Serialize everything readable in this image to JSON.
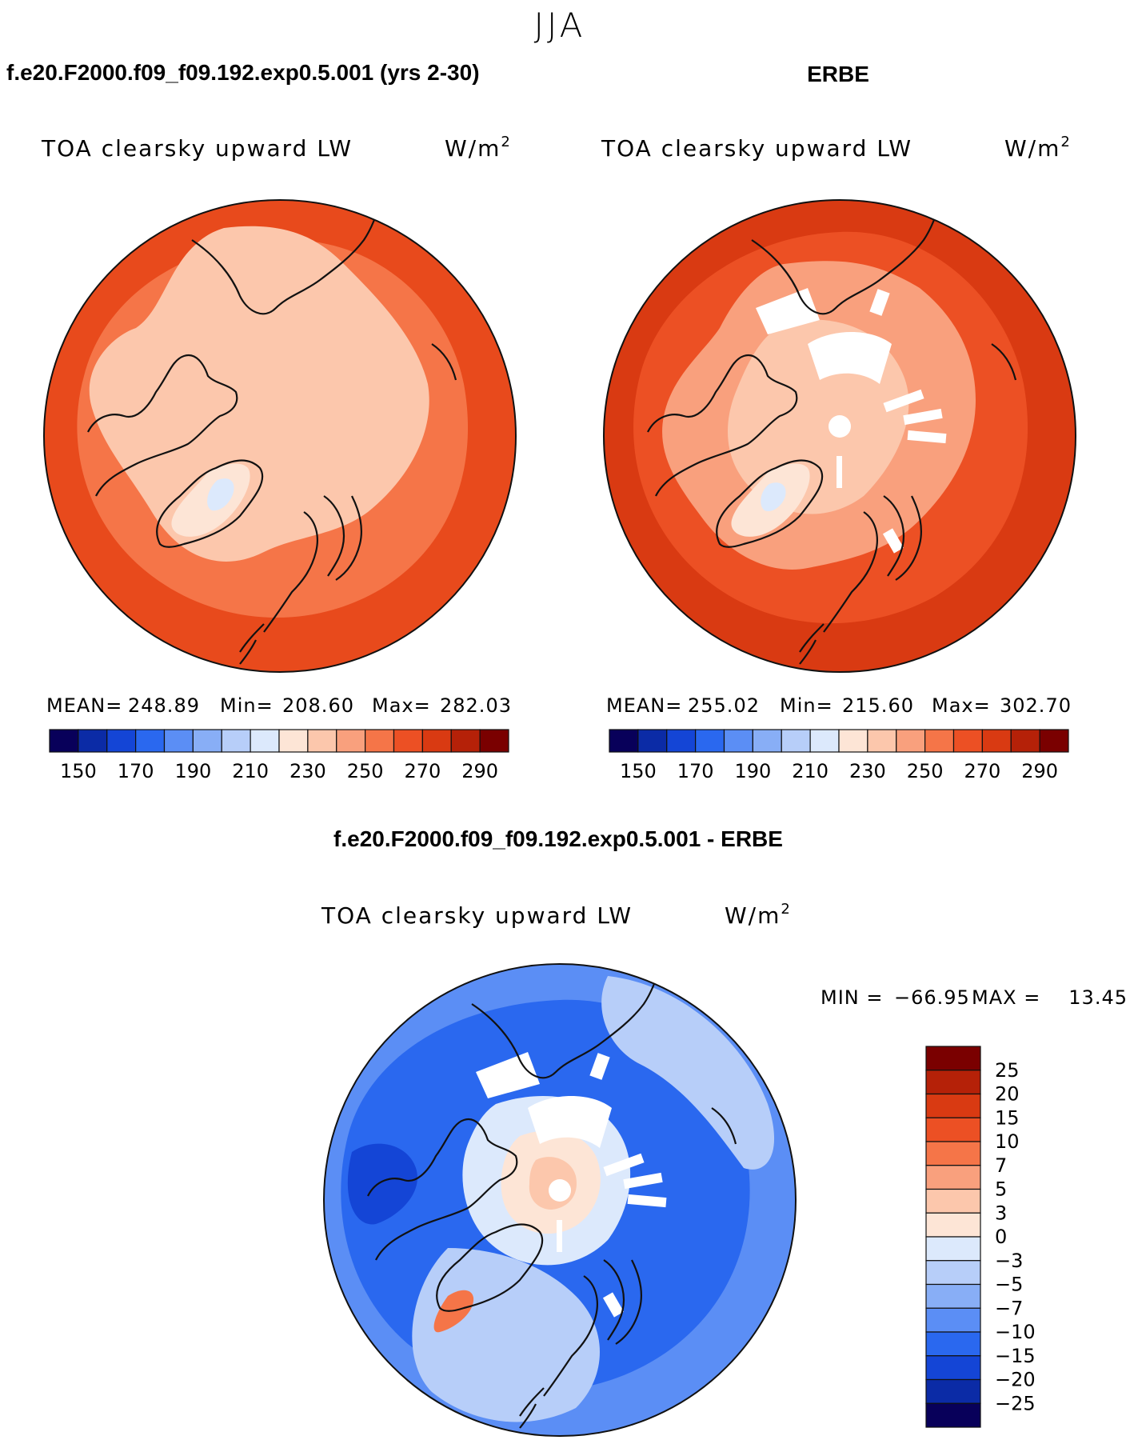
{
  "season": "JJA",
  "colors": {
    "ocean_red": "#e84a1c",
    "land_light": "#fcc7ac",
    "coast": "#111111",
    "blue_base": "#1e5be6",
    "blue_light": "#a9c8f5"
  },
  "chart_data": [
    {
      "type": "heatmap",
      "projection": "north-polar-stereographic",
      "title": "f.e20.F2000.f09_f09.192.exp0.5.001 (yrs 2-30)",
      "variable": "TOA clearsky upward LW",
      "units": "W/m",
      "units_power": "2",
      "stats": {
        "mean_label": "MEAN=",
        "mean": "248.89",
        "min_label": "Min=",
        "min": "208.60",
        "max_label": "Max=",
        "max": "282.03"
      },
      "colorbar": {
        "levels": [
          150,
          160,
          170,
          180,
          190,
          200,
          210,
          220,
          230,
          240,
          250,
          260,
          270,
          280,
          290
        ],
        "tick_labels": [
          "150",
          "170",
          "190",
          "210",
          "230",
          "250",
          "270",
          "290"
        ],
        "colors": [
          "#08005a",
          "#0b2ba6",
          "#1445d6",
          "#2a68ef",
          "#5b8ef5",
          "#88aef6",
          "#b7cef9",
          "#dce9fc",
          "#fde5d6",
          "#fcc7ac",
          "#f9a07d",
          "#f57548",
          "#ec5024",
          "#d93a12",
          "#b52108",
          "#7a0000"
        ]
      }
    },
    {
      "type": "heatmap",
      "projection": "north-polar-stereographic",
      "title": "ERBE",
      "variable": "TOA clearsky upward LW",
      "units": "W/m",
      "units_power": "2",
      "stats": {
        "mean_label": "MEAN=",
        "mean": "255.02",
        "min_label": "Min=",
        "min": "215.60",
        "max_label": "Max=",
        "max": "302.70"
      },
      "colorbar": {
        "levels": [
          150,
          160,
          170,
          180,
          190,
          200,
          210,
          220,
          230,
          240,
          250,
          260,
          270,
          280,
          290
        ],
        "tick_labels": [
          "150",
          "170",
          "190",
          "210",
          "230",
          "250",
          "270",
          "290"
        ],
        "colors": [
          "#08005a",
          "#0b2ba6",
          "#1445d6",
          "#2a68ef",
          "#5b8ef5",
          "#88aef6",
          "#b7cef9",
          "#dce9fc",
          "#fde5d6",
          "#fcc7ac",
          "#f9a07d",
          "#f57548",
          "#ec5024",
          "#d93a12",
          "#b52108",
          "#7a0000"
        ]
      }
    },
    {
      "type": "heatmap",
      "projection": "north-polar-stereographic",
      "title": "f.e20.F2000.f09_f09.192.exp0.5.001 - ERBE",
      "variable": "TOA clearsky upward LW",
      "units": "W/m",
      "units_power": "2",
      "stats": {
        "min_label": "MIN =",
        "min": "−66.95",
        "max_label": "MAX =",
        "max": "13.45"
      },
      "colorbar": {
        "tick_labels": [
          "25",
          "20",
          "15",
          "10",
          "7",
          "5",
          "3",
          "0",
          "−3",
          "−5",
          "−7",
          "−10",
          "−15",
          "−20",
          "−25"
        ],
        "colors": [
          "#7a0000",
          "#b52108",
          "#d93a12",
          "#ec5024",
          "#f57548",
          "#f9a07d",
          "#fcc7ac",
          "#fde5d6",
          "#dce9fc",
          "#b7cef9",
          "#88aef6",
          "#5b8ef5",
          "#2a68ef",
          "#1445d6",
          "#0b2ba6",
          "#08005a"
        ]
      }
    }
  ]
}
